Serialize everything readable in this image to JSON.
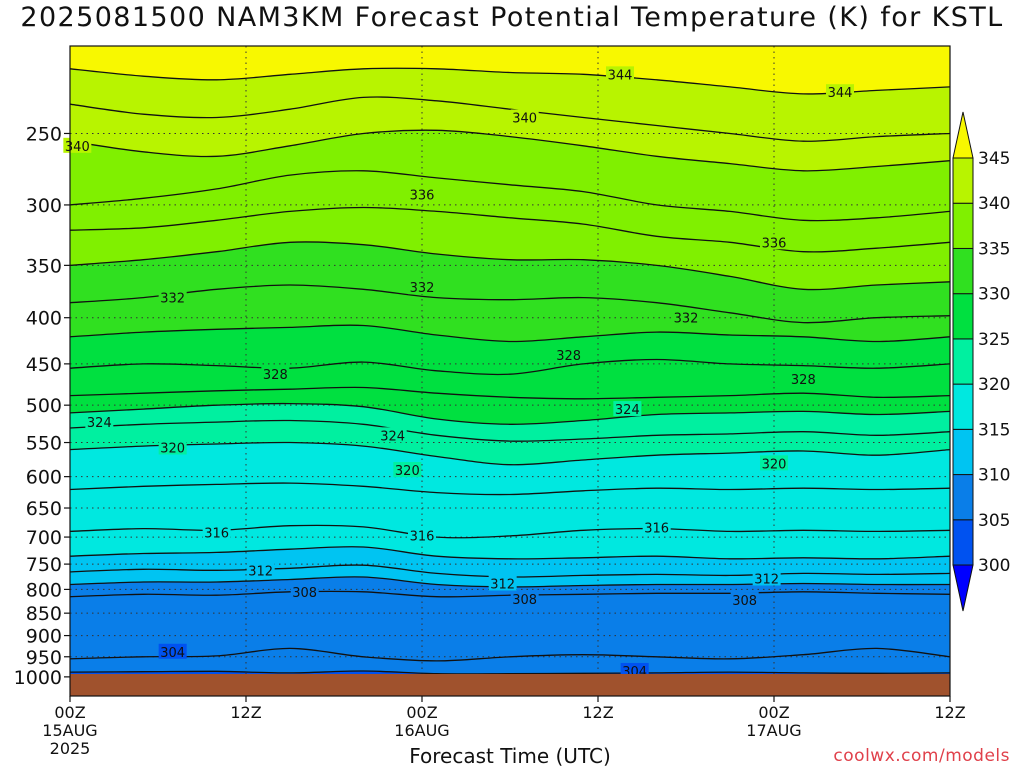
{
  "chart_data": {
    "type": "heatmap",
    "title": "2025081500 NAM3KM Forecast Potential Temperature (K) for KSTL",
    "xlabel": "Forecast Time (UTC)",
    "ylabel": "",
    "credit": "coolwx.com/models",
    "y_axis": {
      "unit": "hPa",
      "scale": "log-pressure",
      "range": [
        200,
        1050
      ],
      "ticks": [
        250,
        300,
        350,
        400,
        450,
        500,
        550,
        600,
        650,
        700,
        750,
        800,
        850,
        900,
        950,
        1000
      ]
    },
    "x_axis": {
      "range_hours": [
        0,
        60
      ],
      "ticks": [
        {
          "hour": 0,
          "lines": [
            "00Z",
            "15AUG",
            "2025"
          ]
        },
        {
          "hour": 12,
          "lines": [
            "12Z"
          ]
        },
        {
          "hour": 24,
          "lines": [
            "00Z",
            "16AUG"
          ]
        },
        {
          "hour": 36,
          "lines": [
            "12Z"
          ]
        },
        {
          "hour": 48,
          "lines": [
            "00Z",
            "17AUG"
          ]
        },
        {
          "hour": 60,
          "lines": [
            "12Z"
          ]
        }
      ]
    },
    "colorbar": {
      "levels": [
        300,
        305,
        310,
        315,
        320,
        325,
        330,
        335,
        340,
        345
      ],
      "labels": [
        "300",
        "305",
        "310",
        "315",
        "320",
        "325",
        "330",
        "335",
        "340",
        "345"
      ],
      "colors": [
        "#0000ff",
        "#0052f0",
        "#0a7ee8",
        "#00c4f2",
        "#00e8e0",
        "#00f0a0",
        "#00e040",
        "#30e020",
        "#80f000",
        "#b8f400",
        "#f8f800"
      ]
    },
    "contour_interval_K": 2,
    "ground_color": "#a0522d",
    "isentropes": [
      {
        "theta": 304,
        "pressure_hPa": [
          988,
          987,
          986,
          990,
          985,
          992,
          992,
          991,
          990,
          988,
          990,
          991,
          990
        ]
      },
      {
        "theta": 306,
        "pressure_hPa": [
          955,
          950,
          948,
          930,
          950,
          960,
          950,
          945,
          950,
          955,
          945,
          930,
          950
        ]
      },
      {
        "theta": 308,
        "pressure_hPa": [
          815,
          810,
          812,
          805,
          805,
          815,
          812,
          810,
          808,
          808,
          805,
          808,
          810
        ]
      },
      {
        "theta": 310,
        "pressure_hPa": [
          790,
          785,
          785,
          780,
          775,
          790,
          795,
          792,
          790,
          790,
          788,
          790,
          790
        ]
      },
      {
        "theta": 312,
        "pressure_hPa": [
          765,
          760,
          762,
          758,
          752,
          768,
          775,
          772,
          770,
          772,
          768,
          770,
          768
        ]
      },
      {
        "theta": 314,
        "pressure_hPa": [
          735,
          730,
          728,
          722,
          718,
          735,
          740,
          738,
          735,
          740,
          738,
          740,
          735
        ]
      },
      {
        "theta": 316,
        "pressure_hPa": [
          690,
          685,
          688,
          680,
          682,
          700,
          698,
          688,
          685,
          690,
          688,
          690,
          688
        ]
      },
      {
        "theta": 318,
        "pressure_hPa": [
          620,
          615,
          612,
          610,
          615,
          625,
          628,
          622,
          618,
          620,
          618,
          620,
          618
        ]
      },
      {
        "theta": 320,
        "pressure_hPa": [
          560,
          555,
          552,
          550,
          555,
          570,
          582,
          575,
          568,
          565,
          562,
          568,
          560
        ]
      },
      {
        "theta": 322,
        "pressure_hPa": [
          530,
          525,
          522,
          520,
          525,
          540,
          548,
          545,
          540,
          538,
          535,
          540,
          535
        ]
      },
      {
        "theta": 324,
        "pressure_hPa": [
          510,
          505,
          500,
          498,
          502,
          518,
          525,
          520,
          512,
          510,
          508,
          512,
          508
        ]
      },
      {
        "theta": 326,
        "pressure_hPa": [
          488,
          485,
          482,
          480,
          478,
          485,
          490,
          492,
          490,
          488,
          485,
          490,
          488
        ]
      },
      {
        "theta": 328,
        "pressure_hPa": [
          455,
          450,
          452,
          455,
          448,
          458,
          462,
          450,
          445,
          450,
          452,
          455,
          450
        ]
      },
      {
        "theta": 330,
        "pressure_hPa": [
          420,
          415,
          412,
          410,
          408,
          418,
          425,
          420,
          415,
          418,
          420,
          425,
          420
        ]
      },
      {
        "theta": 332,
        "pressure_hPa": [
          385,
          380,
          372,
          368,
          372,
          380,
          382,
          380,
          385,
          395,
          405,
          400,
          398
        ]
      },
      {
        "theta": 334,
        "pressure_hPa": [
          350,
          345,
          338,
          330,
          332,
          340,
          345,
          345,
          350,
          360,
          372,
          368,
          365
        ]
      },
      {
        "theta": 336,
        "pressure_hPa": [
          320,
          318,
          312,
          305,
          302,
          305,
          310,
          315,
          325,
          330,
          338,
          335,
          330
        ]
      },
      {
        "theta": 338,
        "pressure_hPa": [
          300,
          295,
          288,
          278,
          275,
          280,
          285,
          290,
          300,
          305,
          312,
          310,
          305
        ]
      },
      {
        "theta": 340,
        "pressure_hPa": [
          255,
          262,
          265,
          258,
          250,
          248,
          252,
          258,
          265,
          270,
          275,
          272,
          268
        ]
      },
      {
        "theta": 342,
        "pressure_hPa": [
          232,
          238,
          240,
          235,
          228,
          230,
          235,
          240,
          245,
          250,
          255,
          252,
          250
        ]
      },
      {
        "theta": 344,
        "pressure_hPa": [
          212,
          216,
          218,
          215,
          212,
          212,
          214,
          215,
          218,
          222,
          226,
          224,
          222
        ]
      }
    ],
    "isentrope_hours": [
      0,
      5,
      10,
      15,
      20,
      25,
      30,
      35,
      40,
      45,
      50,
      55,
      60
    ],
    "contour_labels": [
      {
        "text": "344",
        "hour": 37.5,
        "p": 215
      },
      {
        "text": "344",
        "hour": 52.5,
        "p": 225
      },
      {
        "text": "340",
        "hour": 0.5,
        "p": 258
      },
      {
        "text": "340",
        "hour": 31,
        "p": 240
      },
      {
        "text": "336",
        "hour": 24,
        "p": 292
      },
      {
        "text": "336",
        "hour": 48,
        "p": 330
      },
      {
        "text": "332",
        "hour": 7,
        "p": 380
      },
      {
        "text": "332",
        "hour": 24,
        "p": 370
      },
      {
        "text": "332",
        "hour": 42,
        "p": 400
      },
      {
        "text": "328",
        "hour": 14,
        "p": 462
      },
      {
        "text": "328",
        "hour": 34,
        "p": 440
      },
      {
        "text": "328",
        "hour": 50,
        "p": 468
      },
      {
        "text": "324",
        "hour": 2,
        "p": 522
      },
      {
        "text": "324",
        "hour": 22,
        "p": 540
      },
      {
        "text": "324",
        "hour": 38,
        "p": 505
      },
      {
        "text": "320",
        "hour": 7,
        "p": 557
      },
      {
        "text": "320",
        "hour": 23,
        "p": 590
      },
      {
        "text": "320",
        "hour": 48,
        "p": 580
      },
      {
        "text": "316",
        "hour": 10,
        "p": 692
      },
      {
        "text": "316",
        "hour": 24,
        "p": 697
      },
      {
        "text": "316",
        "hour": 40,
        "p": 683
      },
      {
        "text": "312",
        "hour": 13,
        "p": 762
      },
      {
        "text": "312",
        "hour": 29.5,
        "p": 788
      },
      {
        "text": "312",
        "hour": 47.5,
        "p": 778
      },
      {
        "text": "308",
        "hour": 16,
        "p": 805
      },
      {
        "text": "308",
        "hour": 31,
        "p": 820
      },
      {
        "text": "308",
        "hour": 46,
        "p": 822
      },
      {
        "text": "304",
        "hour": 7,
        "p": 938
      },
      {
        "text": "304",
        "hour": 38.5,
        "p": 985
      }
    ]
  }
}
